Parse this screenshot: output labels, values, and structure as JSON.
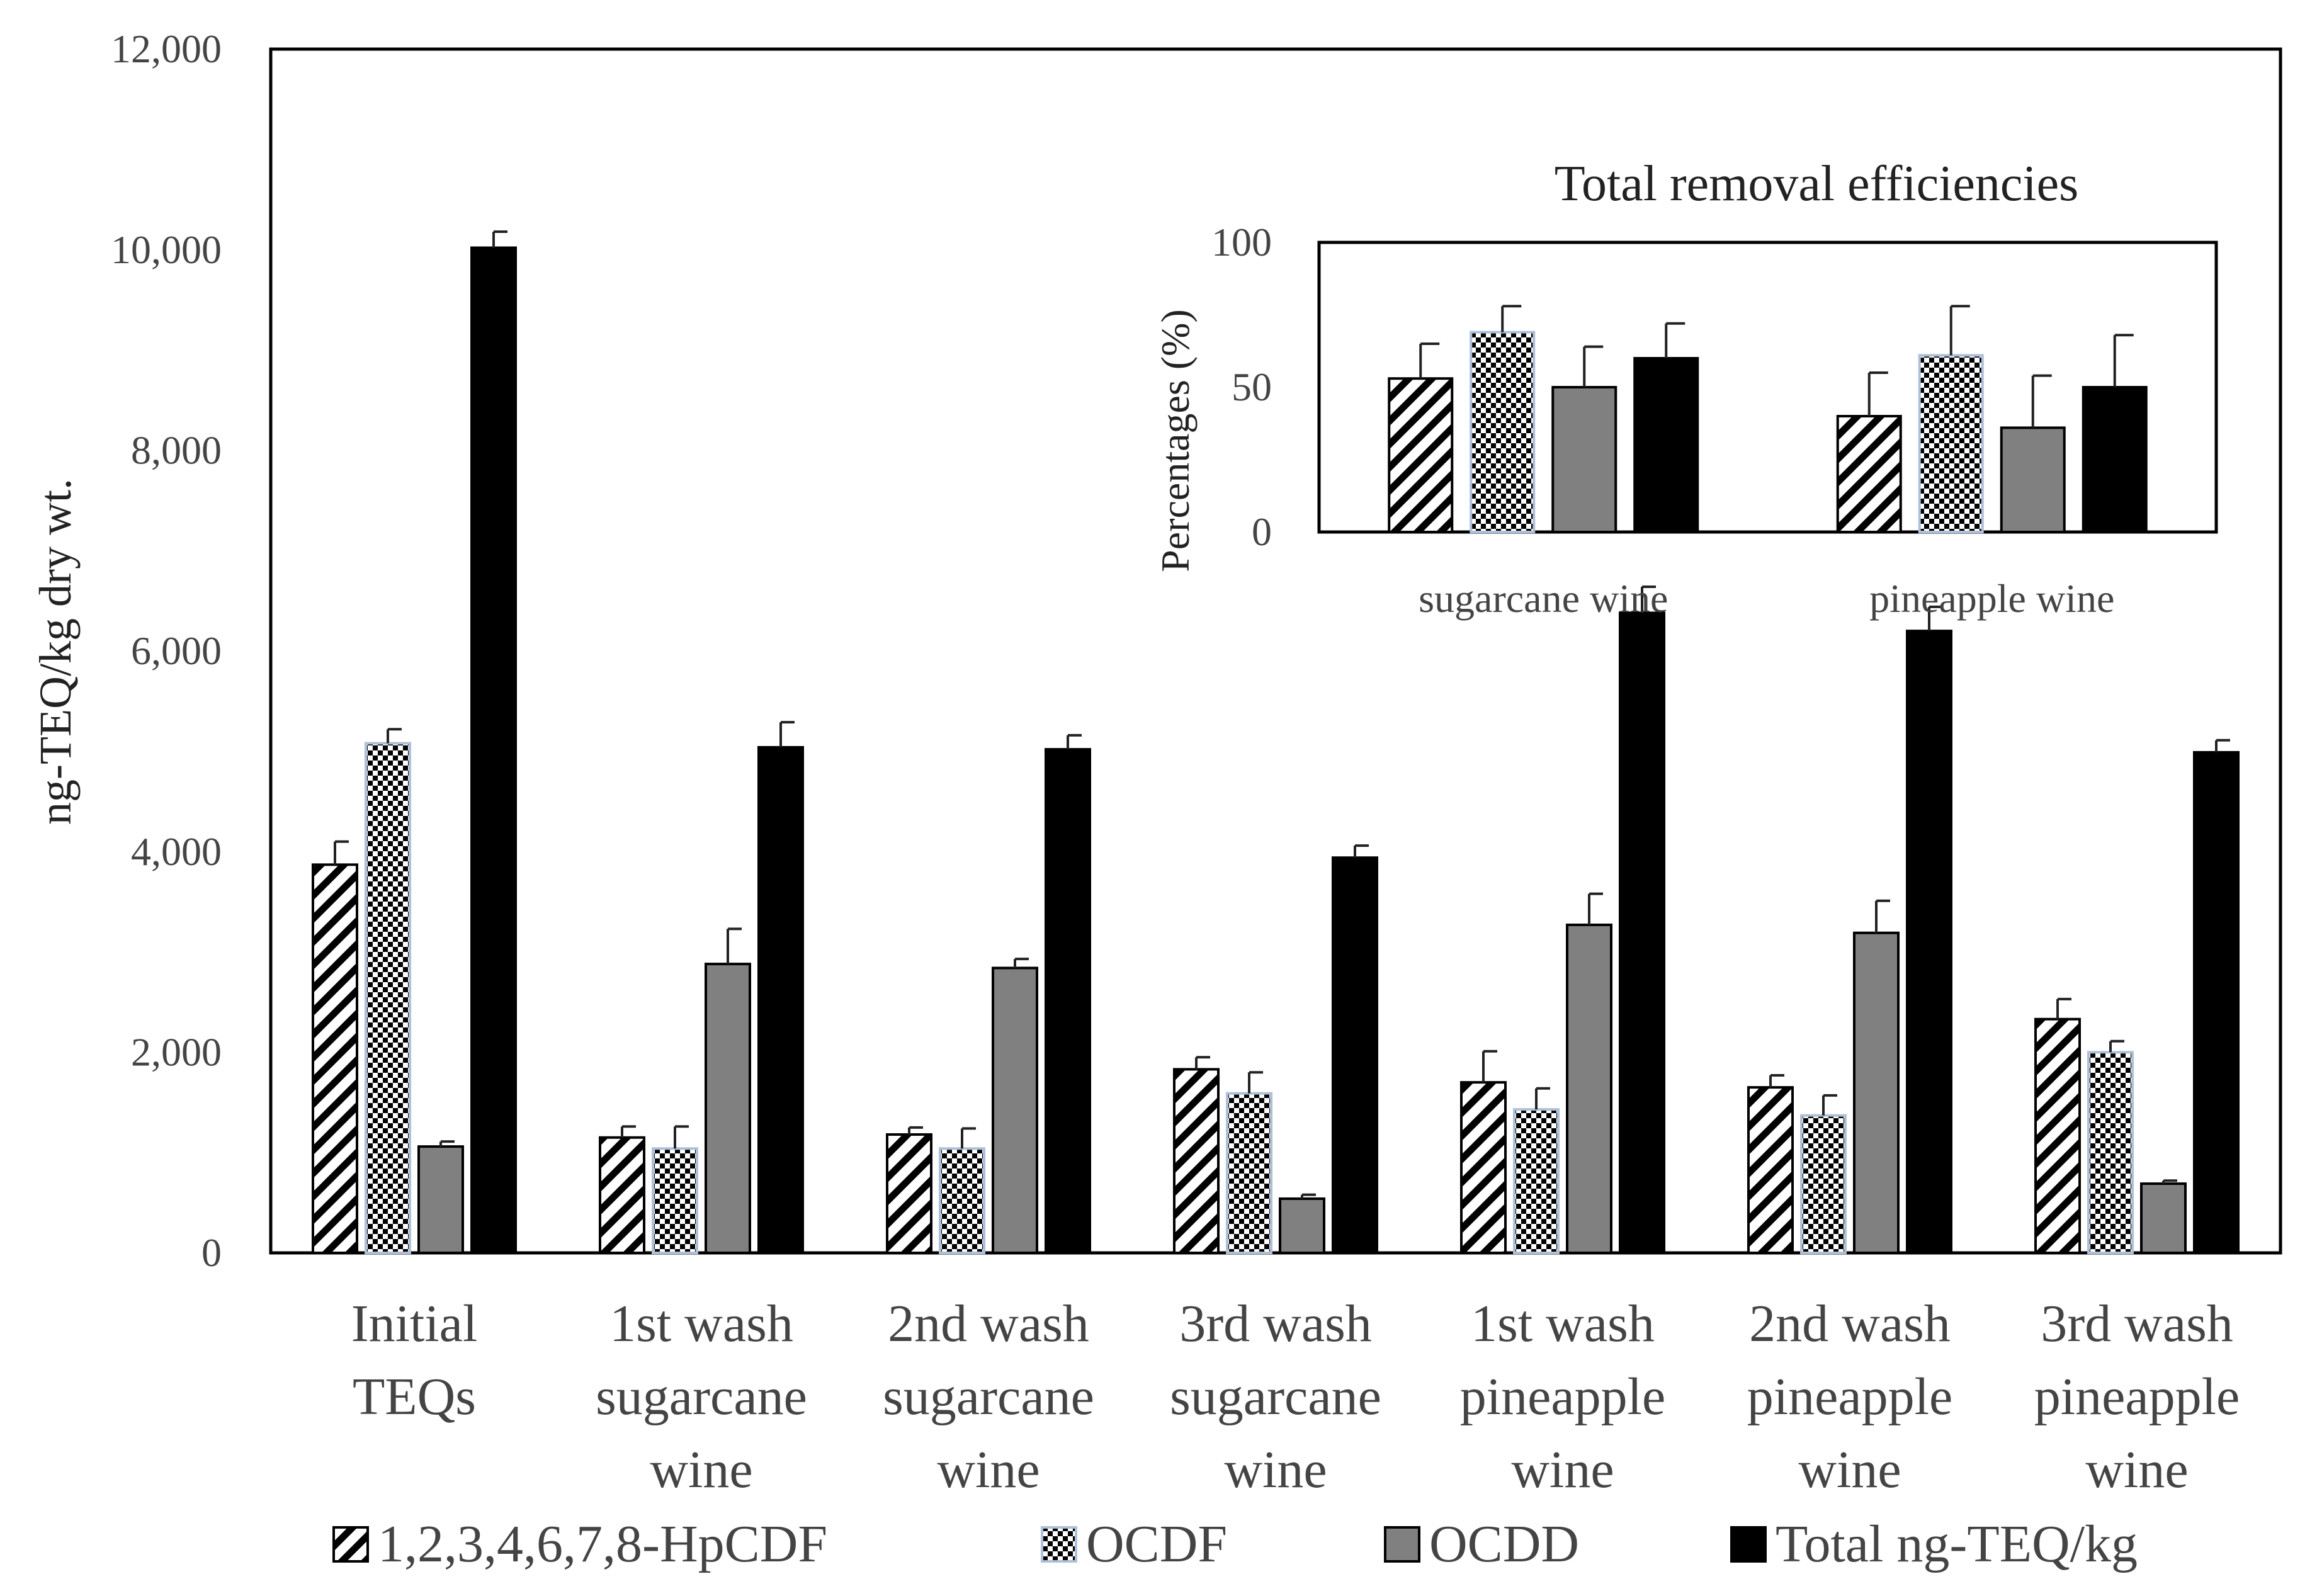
{
  "chart_data": [
    {
      "id": "main",
      "type": "bar",
      "ylabel": "ng-TEQ/kg dry wt.",
      "ylim": [
        0,
        12000
      ],
      "ytick_values": [
        0,
        2000,
        4000,
        6000,
        8000,
        10000,
        12000
      ],
      "ytick_labels": [
        "0",
        "2,000",
        "4,000",
        "6,000",
        "8,000",
        "10,000",
        "12,000"
      ],
      "categories": [
        [
          "Initial",
          "TEQs"
        ],
        [
          "1st wash",
          "sugarcane",
          "wine"
        ],
        [
          "2nd wash",
          "sugarcane",
          "wine"
        ],
        [
          "3rd wash",
          "sugarcane",
          "wine"
        ],
        [
          "1st wash",
          "pineapple",
          "wine"
        ],
        [
          "2nd wash",
          "pineapple",
          "wine"
        ],
        [
          "3rd wash",
          "pineapple",
          "wine"
        ]
      ],
      "series": [
        {
          "name": "1,2,3,4,6,7,8-HpCDF",
          "pattern": "hatch",
          "values": [
            3870,
            1150,
            1180,
            1830,
            1700,
            1650,
            2330
          ],
          "errors": [
            230,
            110,
            70,
            120,
            310,
            120,
            200
          ]
        },
        {
          "name": "OCDF",
          "pattern": "checker",
          "values": [
            5080,
            1040,
            1040,
            1590,
            1430,
            1370,
            2000
          ],
          "errors": [
            140,
            220,
            200,
            210,
            210,
            200,
            110
          ]
        },
        {
          "name": "OCDD",
          "pattern": "gray",
          "values": [
            1060,
            2880,
            2840,
            540,
            3270,
            3190,
            690
          ],
          "errors": [
            50,
            350,
            90,
            40,
            310,
            320,
            30
          ]
        },
        {
          "name": "Total ng-TEQ/kg",
          "pattern": "black",
          "values": [
            10020,
            5040,
            5020,
            3940,
            6380,
            6200,
            4990
          ],
          "errors": [
            160,
            250,
            140,
            120,
            260,
            240,
            120
          ]
        }
      ],
      "legend": [
        "1,2,3,4,6,7,8-HpCDF",
        "OCDF",
        "OCDD",
        "Total ng-TEQ/kg"
      ],
      "legend_position": "bottom"
    },
    {
      "id": "inset",
      "type": "bar",
      "title": "Total removal efficiencies",
      "ylabel": "Percentages (%)",
      "ylim": [
        0,
        100
      ],
      "ytick_values": [
        0,
        50,
        100
      ],
      "ytick_labels": [
        "0",
        "50",
        "100"
      ],
      "categories": [
        "sugarcane wine",
        "pineapple wine"
      ],
      "series": [
        {
          "name": "1,2,3,4,6,7,8-HpCDF",
          "pattern": "hatch",
          "values": [
            53,
            40
          ],
          "errors": [
            12,
            15
          ]
        },
        {
          "name": "OCDF",
          "pattern": "checker",
          "values": [
            69,
            61
          ],
          "errors": [
            9,
            17
          ]
        },
        {
          "name": "OCDD",
          "pattern": "gray",
          "values": [
            50,
            36
          ],
          "errors": [
            14,
            18
          ]
        },
        {
          "name": "Total ng-TEQ/kg",
          "pattern": "black",
          "values": [
            60,
            50
          ],
          "errors": [
            12,
            18
          ]
        }
      ]
    }
  ]
}
